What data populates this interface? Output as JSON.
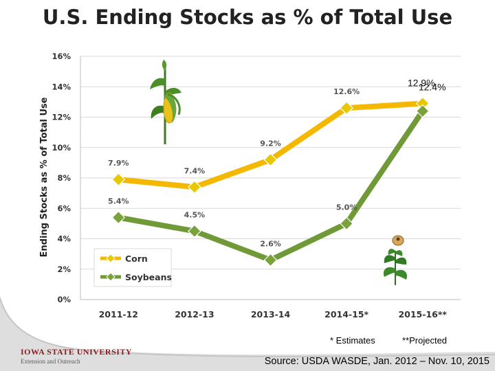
{
  "title": "U.S. Ending Stocks as % of Total Use",
  "chart_data": {
    "type": "line",
    "ylabel": "Ending Stocks as % of Total Use",
    "xlabel": "",
    "categories": [
      "2011-12",
      "2012-13",
      "2013-14",
      "2014-15*",
      "2015-16**"
    ],
    "yticks": [
      "0%",
      "2%",
      "4%",
      "6%",
      "8%",
      "10%",
      "12%",
      "14%",
      "16%"
    ],
    "ylim": [
      0,
      16
    ],
    "grid": true,
    "legend_position": "bottom-left",
    "series": [
      {
        "name": "Corn",
        "color": "#f5b800",
        "marker_color": "#e8c800",
        "values": [
          7.9,
          7.4,
          9.2,
          12.6,
          12.9
        ],
        "labels": [
          "7.9%",
          "7.4%",
          "9.2%",
          "12.6%",
          "12.9%"
        ]
      },
      {
        "name": "Soybeans",
        "color": "#6f9a37",
        "marker_color": "#7aa23a",
        "values": [
          5.4,
          4.5,
          2.6,
          5.0,
          12.4
        ],
        "labels": [
          "5.4%",
          "4.5%",
          "2.6%",
          "5.0%",
          "12.4%"
        ]
      }
    ]
  },
  "notes": {
    "estimates": "* Estimates",
    "projected": "**Projected"
  },
  "footer": {
    "university": "IOWA STATE UNIVERSITY",
    "subtitle": "Extension and Outreach",
    "source": "Source:  USDA WASDE, Jan. 2012 – Nov. 10, 2015"
  },
  "icons": [
    "corn-plant-icon",
    "soybean-plant-icon"
  ]
}
